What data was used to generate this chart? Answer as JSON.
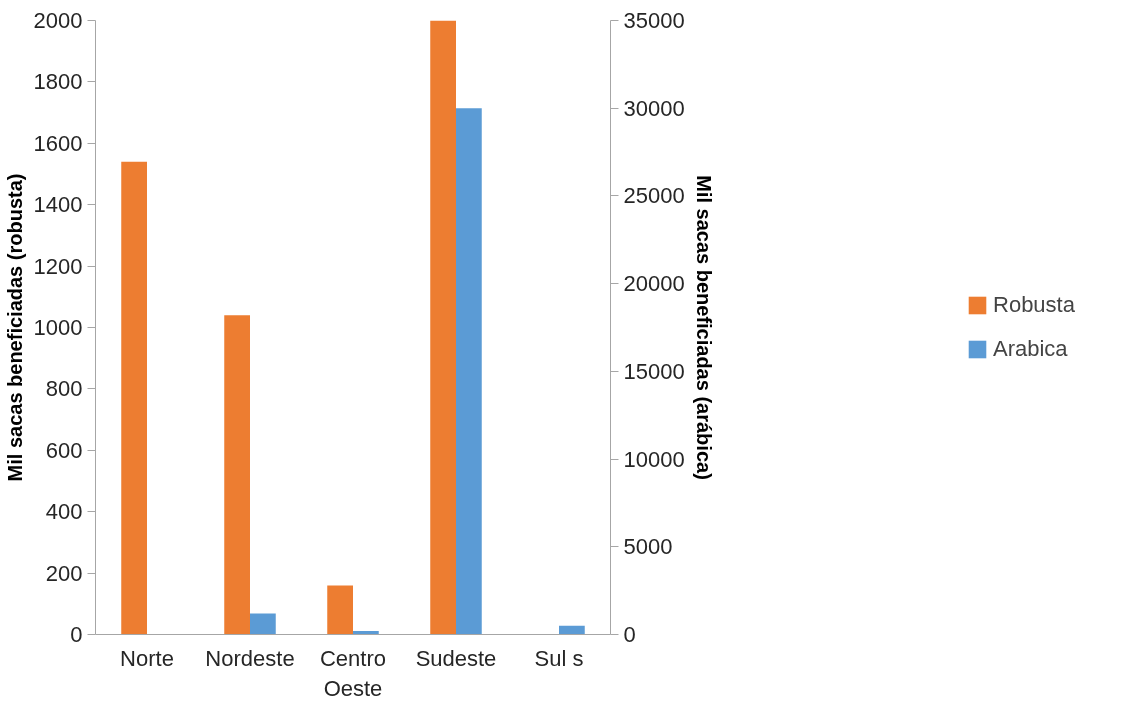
{
  "chart_data": {
    "type": "bar",
    "categories": [
      "Norte",
      "Nordeste",
      "Centro Oeste",
      "Sudeste",
      "Sul s"
    ],
    "series": [
      {
        "name": "Robusta",
        "color": "#ed7d31",
        "values": [
          1540,
          1040,
          160,
          2000,
          0
        ]
      },
      {
        "name": "Arabica",
        "color": "#5b9bd5",
        "values": [
          0,
          1200,
          200,
          30000,
          500
        ],
        "axis": "y2"
      }
    ],
    "ylabel": "Mil sacas beneficiadas (robusta)",
    "y2label": "Mil sacas beneficiadas (arábica)",
    "ylim": [
      0,
      2000
    ],
    "yticks": [
      0,
      200,
      400,
      600,
      800,
      1000,
      1200,
      1400,
      1600,
      1800,
      2000
    ],
    "y2lim": [
      0,
      35000
    ],
    "y2ticks": [
      0,
      5000,
      10000,
      15000,
      20000,
      25000,
      30000,
      35000
    ],
    "legend": "right",
    "grid": false
  }
}
